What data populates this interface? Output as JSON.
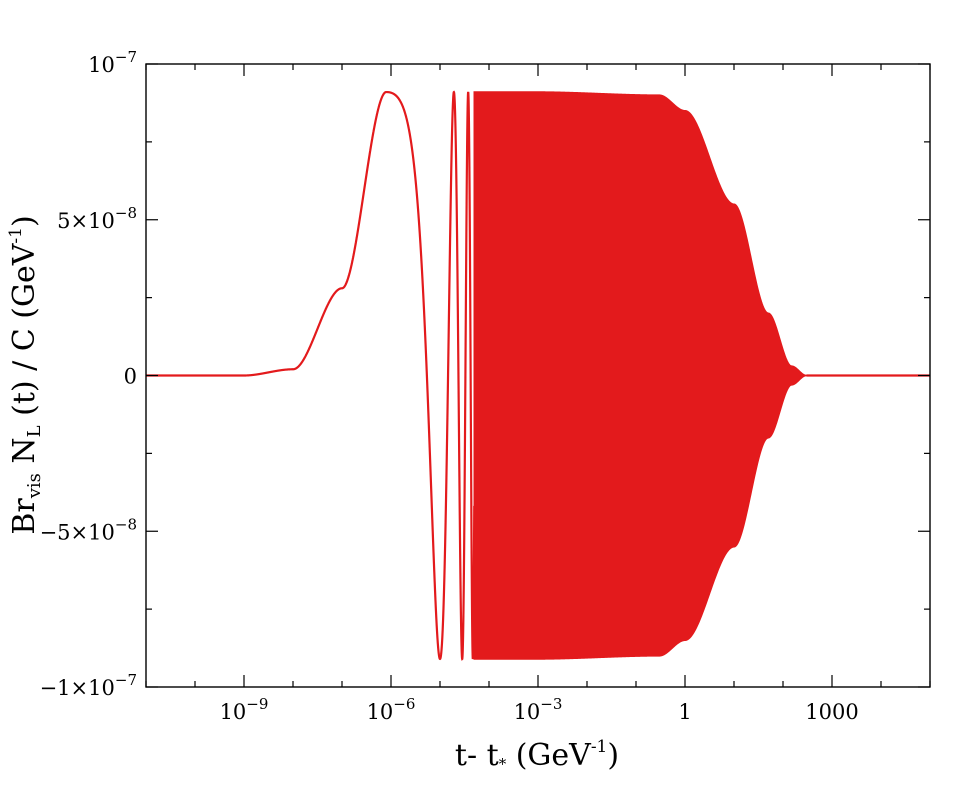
{
  "chart_data": {
    "type": "line",
    "title": "",
    "xlabel": {
      "main": "t- t",
      "sub": "*",
      "unit_pre": " (GeV",
      "unit_sup": "-1",
      "unit_post": ")"
    },
    "ylabel": {
      "p1": "Br",
      "p1_sub": "vis",
      "p2": " N",
      "p2_sub": "L",
      "p3": " (t) / C (GeV",
      "p3_sup": "-1",
      "p4": ")"
    },
    "x_scale": "log",
    "xlim": [
      1e-11,
      100000.0
    ],
    "ylim": [
      -1e-07,
      1e-07
    ],
    "x_ticks": [
      {
        "value": 1e-09,
        "base": "10",
        "exp": "−9"
      },
      {
        "value": 1e-06,
        "base": "10",
        "exp": "−6"
      },
      {
        "value": 0.001,
        "base": "10",
        "exp": "−3"
      },
      {
        "value": 1,
        "base": "1",
        "exp": ""
      },
      {
        "value": 1000,
        "base": "1000",
        "exp": ""
      }
    ],
    "y_ticks": [
      {
        "value": 1e-07,
        "mant": "",
        "base": "10",
        "exp": "−7"
      },
      {
        "value": 5e-08,
        "mant": "5×",
        "base": "10",
        "exp": "−8"
      },
      {
        "value": 0,
        "mant": "",
        "base": "0",
        "exp": ""
      },
      {
        "value": -5e-08,
        "mant": "−5×",
        "base": "10",
        "exp": "−8"
      },
      {
        "value": -1e-07,
        "mant": "−1×",
        "base": "10",
        "exp": "−7"
      }
    ],
    "series": [
      {
        "color": "#e31a1c",
        "style": "oscillation",
        "peak_amplitude": 9.1e-08,
        "first_peak_x": 8e-07,
        "first_trough_x": 1e-05,
        "filled_band_from_x": 5e-05,
        "decay_onset_x": 0.5,
        "decay_end_x": 300,
        "envelope": [
          [
            1e-11,
            0
          ],
          [
            1e-09,
            0.0
          ],
          [
            1e-08,
            2e-09
          ],
          [
            1e-07,
            2.8e-08
          ],
          [
            8e-07,
            9.1e-08
          ],
          [
            0.001,
            9.1e-08
          ],
          [
            0.3,
            9e-08
          ],
          [
            1,
            8.5e-08
          ],
          [
            10,
            5.5e-08
          ],
          [
            50,
            2e-08
          ],
          [
            150,
            3e-09
          ],
          [
            300,
            0
          ],
          [
            100000.0,
            0
          ]
        ]
      }
    ],
    "grid": false,
    "legend": "none"
  }
}
